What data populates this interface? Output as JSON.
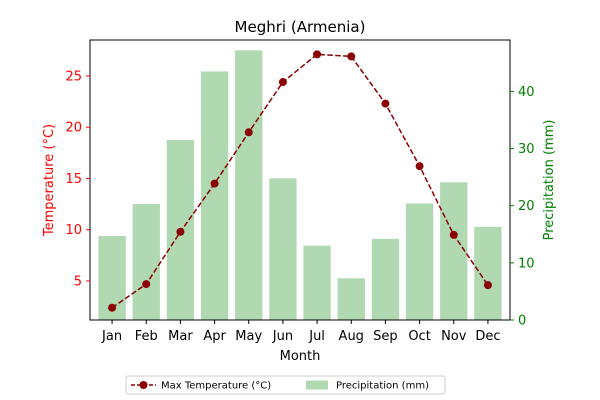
{
  "chart_data": {
    "type": "bar+line",
    "title": "Meghri (Armenia)",
    "xlabel": "Month",
    "categories": [
      "Jan",
      "Feb",
      "Mar",
      "Apr",
      "May",
      "Jun",
      "Jul",
      "Aug",
      "Sep",
      "Oct",
      "Nov",
      "Dec"
    ],
    "left_axis": {
      "label": "Temperature (°C)",
      "ylim": [
        1.2,
        28.5
      ],
      "ticks": [
        5,
        10,
        15,
        20,
        25
      ],
      "color": "#ff0000"
    },
    "right_axis": {
      "label": "Precipitation (mm)",
      "ylim": [
        0,
        49
      ],
      "ticks": [
        0,
        10,
        20,
        30,
        40
      ],
      "color": "#008000"
    },
    "series": [
      {
        "name": "Max Temperature (°C)",
        "kind": "line",
        "axis": "left",
        "color": "#8b0000",
        "line_style": "dashed",
        "marker": "circle",
        "values": [
          2.4,
          4.7,
          9.8,
          14.5,
          19.5,
          24.4,
          27.1,
          26.9,
          22.3,
          16.2,
          9.5,
          4.6
        ]
      },
      {
        "name": "Precipitation (mm)",
        "kind": "bar",
        "axis": "right",
        "color": "#b0d9b1",
        "values": [
          14.7,
          20.3,
          31.5,
          43.5,
          47.2,
          24.8,
          13.0,
          7.3,
          14.2,
          20.4,
          24.1,
          16.3
        ]
      }
    ],
    "legend": {
      "placement": "bottom-center",
      "ncol": 2
    }
  }
}
